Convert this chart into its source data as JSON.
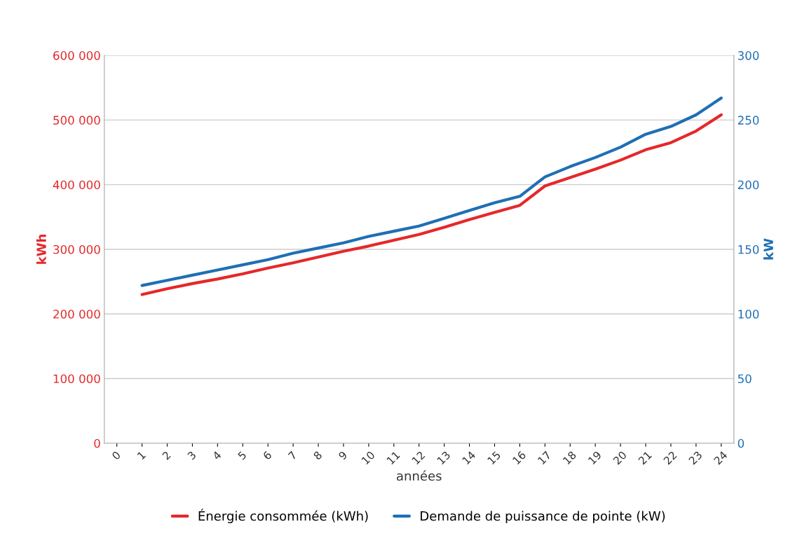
{
  "chart_data": {
    "type": "line",
    "xlabel": "années",
    "ylabel": "kWh",
    "y2label": "kW",
    "categories": [
      "0",
      "1",
      "2",
      "3",
      "4",
      "5",
      "6",
      "7",
      "8",
      "9",
      "10",
      "11",
      "12",
      "13",
      "14",
      "15",
      "16",
      "17",
      "18",
      "19",
      "20",
      "21",
      "22",
      "23",
      "24"
    ],
    "series": [
      {
        "name": "Énergie consommée (kWh)",
        "color": "#e5282a",
        "values": [
          null,
          230000,
          239000,
          247000,
          254000,
          262000,
          271000,
          279000,
          288000,
          297000,
          305000,
          314000,
          323000,
          334000,
          346000,
          357000,
          368000,
          398000,
          411000,
          424000,
          438000,
          454000,
          465000,
          483000,
          508000
        ]
      },
      {
        "name": "Demande de puissance de pointe (kW)",
        "color": "#1f6fb4",
        "axis": "y2",
        "values": [
          null,
          122,
          126,
          130,
          134,
          138,
          142,
          147,
          151,
          155,
          160,
          164,
          168,
          174,
          180,
          186,
          191,
          206,
          214,
          221,
          229,
          239,
          245,
          254,
          267
        ]
      }
    ],
    "ylim": [
      0,
      600000
    ],
    "yticks": [
      {
        "value": 0,
        "label": "0"
      },
      {
        "value": 100000,
        "label": "100 000"
      },
      {
        "value": 200000,
        "label": "200 000"
      },
      {
        "value": 300000,
        "label": "300 000"
      },
      {
        "value": 400000,
        "label": "400 000"
      },
      {
        "value": 500000,
        "label": "500 000"
      },
      {
        "value": 600000,
        "label": "600 000"
      }
    ],
    "y2lim": [
      0,
      300
    ],
    "y2ticks": [
      0,
      50,
      100,
      150,
      200,
      250,
      300
    ],
    "grid": "y",
    "legend": "bottom",
    "marker": "none",
    "line_style": "solid"
  }
}
